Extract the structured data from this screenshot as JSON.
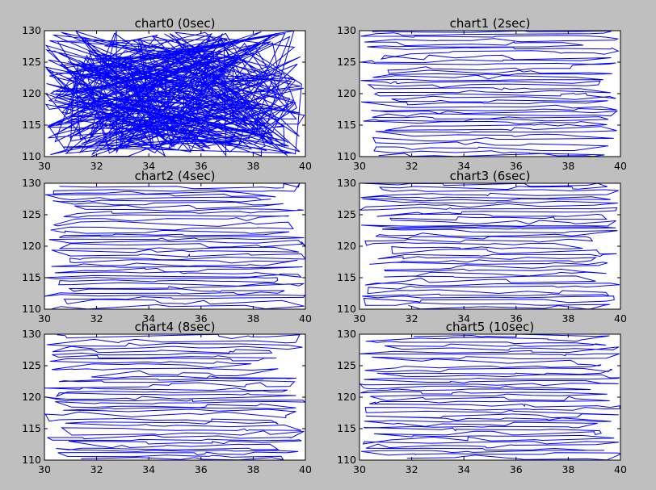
{
  "figure": {
    "background": "#bfbfbf",
    "line_color": "#0000ff"
  },
  "chart_data": [
    {
      "type": "line",
      "title": "chart0 (0sec)",
      "xlim": [
        30,
        40
      ],
      "ylim": [
        110,
        130
      ],
      "xticks": [
        30,
        32,
        34,
        36,
        38,
        40
      ],
      "yticks": [
        110,
        115,
        120,
        125,
        130
      ],
      "points": 400,
      "pattern": "random"
    },
    {
      "type": "line",
      "title": "chart1 (2sec)",
      "xlim": [
        30,
        40
      ],
      "ylim": [
        110,
        130
      ],
      "xticks": [
        30,
        32,
        34,
        36,
        38,
        40
      ],
      "yticks": [
        110,
        115,
        120,
        125,
        130
      ],
      "points": 400,
      "pattern": "sorted-rows"
    },
    {
      "type": "line",
      "title": "chart2 (4sec)",
      "xlim": [
        30,
        40
      ],
      "ylim": [
        110,
        130
      ],
      "xticks": [
        30,
        32,
        34,
        36,
        38,
        40
      ],
      "yticks": [
        110,
        115,
        120,
        125,
        130
      ],
      "points": 400,
      "pattern": "sorted-rows"
    },
    {
      "type": "line",
      "title": "chart3 (6sec)",
      "xlim": [
        30,
        40
      ],
      "ylim": [
        110,
        130
      ],
      "xticks": [
        30,
        32,
        34,
        36,
        38,
        40
      ],
      "yticks": [
        110,
        115,
        120,
        125,
        130
      ],
      "points": 400,
      "pattern": "sorted-rows"
    },
    {
      "type": "line",
      "title": "chart4 (8sec)",
      "xlim": [
        30,
        40
      ],
      "ylim": [
        110,
        130
      ],
      "xticks": [
        30,
        32,
        34,
        36,
        38,
        40
      ],
      "yticks": [
        110,
        115,
        120,
        125,
        130
      ],
      "points": 400,
      "pattern": "sorted-rows"
    },
    {
      "type": "line",
      "title": "chart5 (10sec)",
      "xlim": [
        30,
        40
      ],
      "ylim": [
        110,
        130
      ],
      "xticks": [
        30,
        32,
        34,
        36,
        38,
        40
      ],
      "yticks": [
        110,
        115,
        120,
        125,
        130
      ],
      "points": 400,
      "pattern": "sorted-rows"
    }
  ]
}
